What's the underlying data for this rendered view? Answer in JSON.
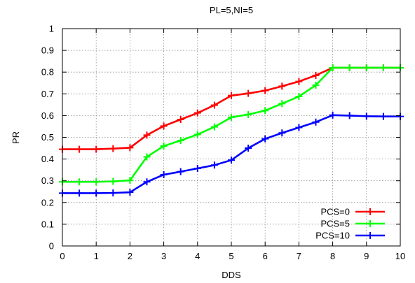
{
  "chart_data": {
    "type": "line",
    "title": "PL=5,NI=5",
    "xlabel": "DDS",
    "ylabel": "PR",
    "xlim": [
      0,
      10
    ],
    "ylim": [
      0,
      1
    ],
    "xticks": [
      "0",
      "1",
      "2",
      "3",
      "4",
      "5",
      "6",
      "7",
      "8",
      "9",
      "10"
    ],
    "yticks": [
      "0",
      "0.1",
      "0.2",
      "0.3",
      "0.4",
      "0.5",
      "0.6",
      "0.7",
      "0.8",
      "0.9",
      "1"
    ],
    "grid": true,
    "legend_position": "bottom-right",
    "x": [
      0,
      0.5,
      1,
      1.5,
      2,
      2.5,
      3,
      3.5,
      4,
      4.5,
      5,
      5.5,
      6,
      6.5,
      7,
      7.5,
      8,
      8.5,
      9,
      9.5,
      10
    ],
    "series": [
      {
        "name": "PCS=0",
        "color": "#ff0000",
        "values": [
          0.445,
          0.445,
          0.445,
          0.448,
          0.452,
          0.51,
          0.552,
          0.582,
          0.612,
          0.648,
          0.692,
          0.702,
          0.715,
          0.735,
          0.757,
          0.785,
          0.82,
          0.82,
          0.82,
          0.82,
          0.82
        ]
      },
      {
        "name": "PCS=5",
        "color": "#00ff00",
        "values": [
          0.295,
          0.295,
          0.295,
          0.297,
          0.302,
          0.41,
          0.46,
          0.485,
          0.513,
          0.548,
          0.592,
          0.605,
          0.623,
          0.655,
          0.688,
          0.74,
          0.82,
          0.82,
          0.82,
          0.82,
          0.82
        ]
      },
      {
        "name": "PCS=10",
        "color": "#0000ff",
        "values": [
          0.243,
          0.243,
          0.243,
          0.244,
          0.247,
          0.295,
          0.328,
          0.342,
          0.357,
          0.372,
          0.395,
          0.45,
          0.493,
          0.52,
          0.545,
          0.57,
          0.602,
          0.6,
          0.597,
          0.596,
          0.596
        ]
      }
    ]
  }
}
